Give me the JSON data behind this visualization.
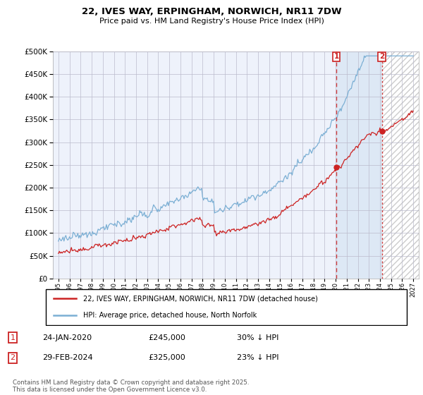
{
  "title": "22, IVES WAY, ERPINGHAM, NORWICH, NR11 7DW",
  "subtitle": "Price paid vs. HM Land Registry's House Price Index (HPI)",
  "hpi_label": "HPI: Average price, detached house, North Norfolk",
  "property_label": "22, IVES WAY, ERPINGHAM, NORWICH, NR11 7DW (detached house)",
  "hpi_color": "#7bafd4",
  "property_color": "#cc2222",
  "marker1_date": "24-JAN-2020",
  "marker1_price": 245000,
  "marker1_pct": "30% ↓ HPI",
  "marker2_date": "29-FEB-2024",
  "marker2_price": 325000,
  "marker2_pct": "23% ↓ HPI",
  "marker1_x": 2020.08,
  "marker2_x": 2024.17,
  "ylim": [
    0,
    500000
  ],
  "xlim": [
    1994.5,
    2027.5
  ],
  "yticks": [
    0,
    50000,
    100000,
    150000,
    200000,
    250000,
    300000,
    350000,
    400000,
    450000,
    500000
  ],
  "footer": "Contains HM Land Registry data © Crown copyright and database right 2025.\nThis data is licensed under the Open Government Licence v3.0.",
  "bg_color": "#eef2fb",
  "grid_color": "#bbbbcc",
  "shade_color": "#dde8f5",
  "hatch_color": "#cccccc"
}
